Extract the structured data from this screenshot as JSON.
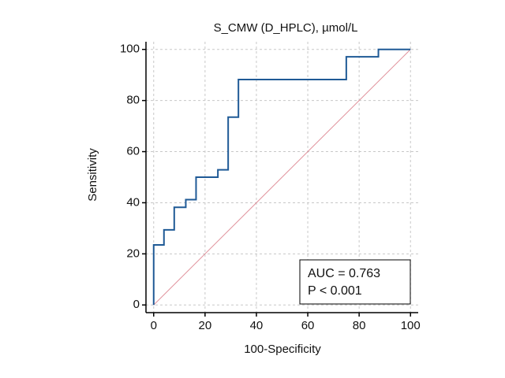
{
  "chart_data": {
    "type": "line",
    "title": "S_CMW (D_HPLC), µmol/L",
    "x_label": "100-Specificity",
    "y_label": "Sensitivity",
    "xlim": [
      -3,
      103
    ],
    "ylim": [
      -3,
      103
    ],
    "xticks": [
      0,
      20,
      40,
      60,
      80,
      100
    ],
    "yticks": [
      0,
      20,
      40,
      60,
      80,
      100
    ],
    "grid": true,
    "series": [
      {
        "color": "#1f5a96",
        "x": [
          0,
          0,
          4,
          4,
          8,
          8,
          12.5,
          12.5,
          16.5,
          16.5,
          25,
          25,
          29,
          29,
          33,
          33,
          75,
          75,
          87.5,
          87.5,
          100
        ],
        "values": [
          0,
          23.5,
          23.5,
          29.4,
          29.4,
          38.2,
          38.2,
          41.2,
          41.2,
          50,
          50,
          52.9,
          52.9,
          73.5,
          73.5,
          88.2,
          88.2,
          97.1,
          97.1,
          100,
          100
        ]
      },
      {
        "color": "#e0909a",
        "x": [
          0,
          100
        ],
        "values": [
          0,
          100
        ]
      }
    ],
    "annotations": [
      "AUC = 0.763",
      "P < 0.001"
    ]
  }
}
